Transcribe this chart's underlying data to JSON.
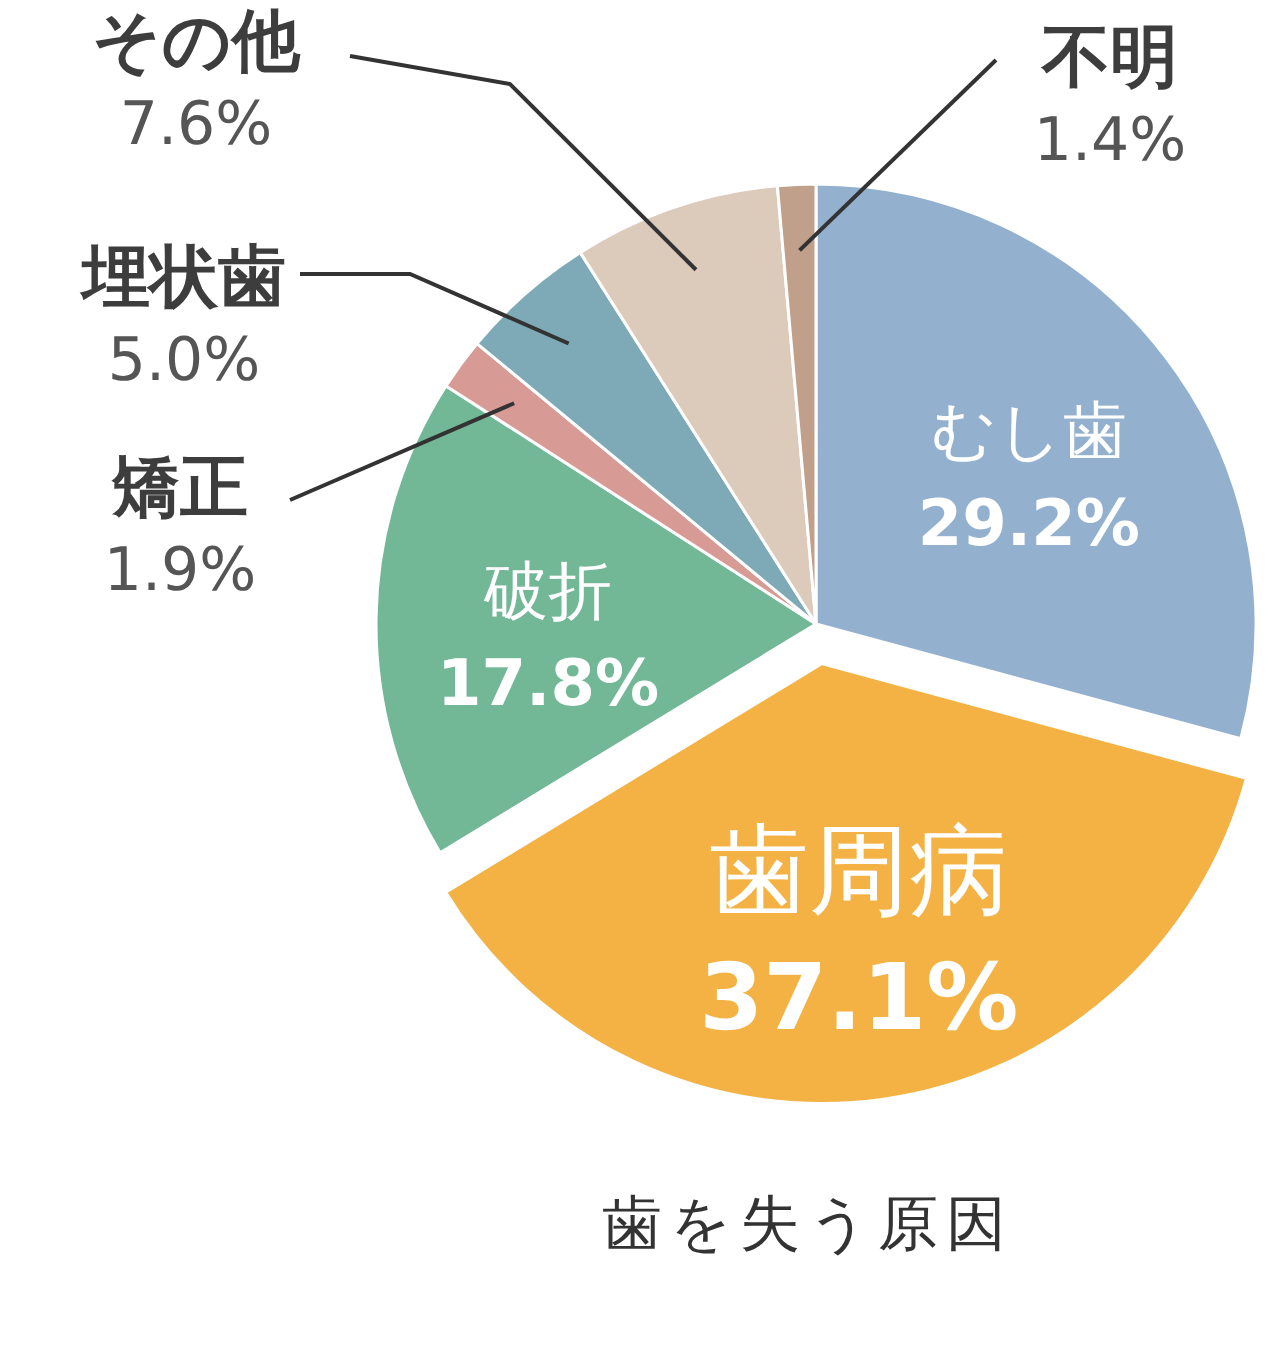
{
  "chart_data": {
    "type": "pie",
    "title": "歯を失う原因",
    "categories": [
      "むし歯",
      "歯周病",
      "破折",
      "矯正",
      "埋状歯",
      "その他",
      "不明"
    ],
    "values": [
      29.2,
      37.1,
      17.8,
      1.9,
      5.0,
      7.6,
      1.4
    ],
    "value_labels": [
      "29.2%",
      "37.1%",
      "17.8%",
      "1.9%",
      "5.0%",
      "7.6%",
      "1.4%"
    ],
    "colors": [
      "#93b1cf",
      "#f4b244",
      "#72b896",
      "#d89a94",
      "#7eaab8",
      "#dccabb",
      "#c0a08a"
    ],
    "legend": false
  }
}
